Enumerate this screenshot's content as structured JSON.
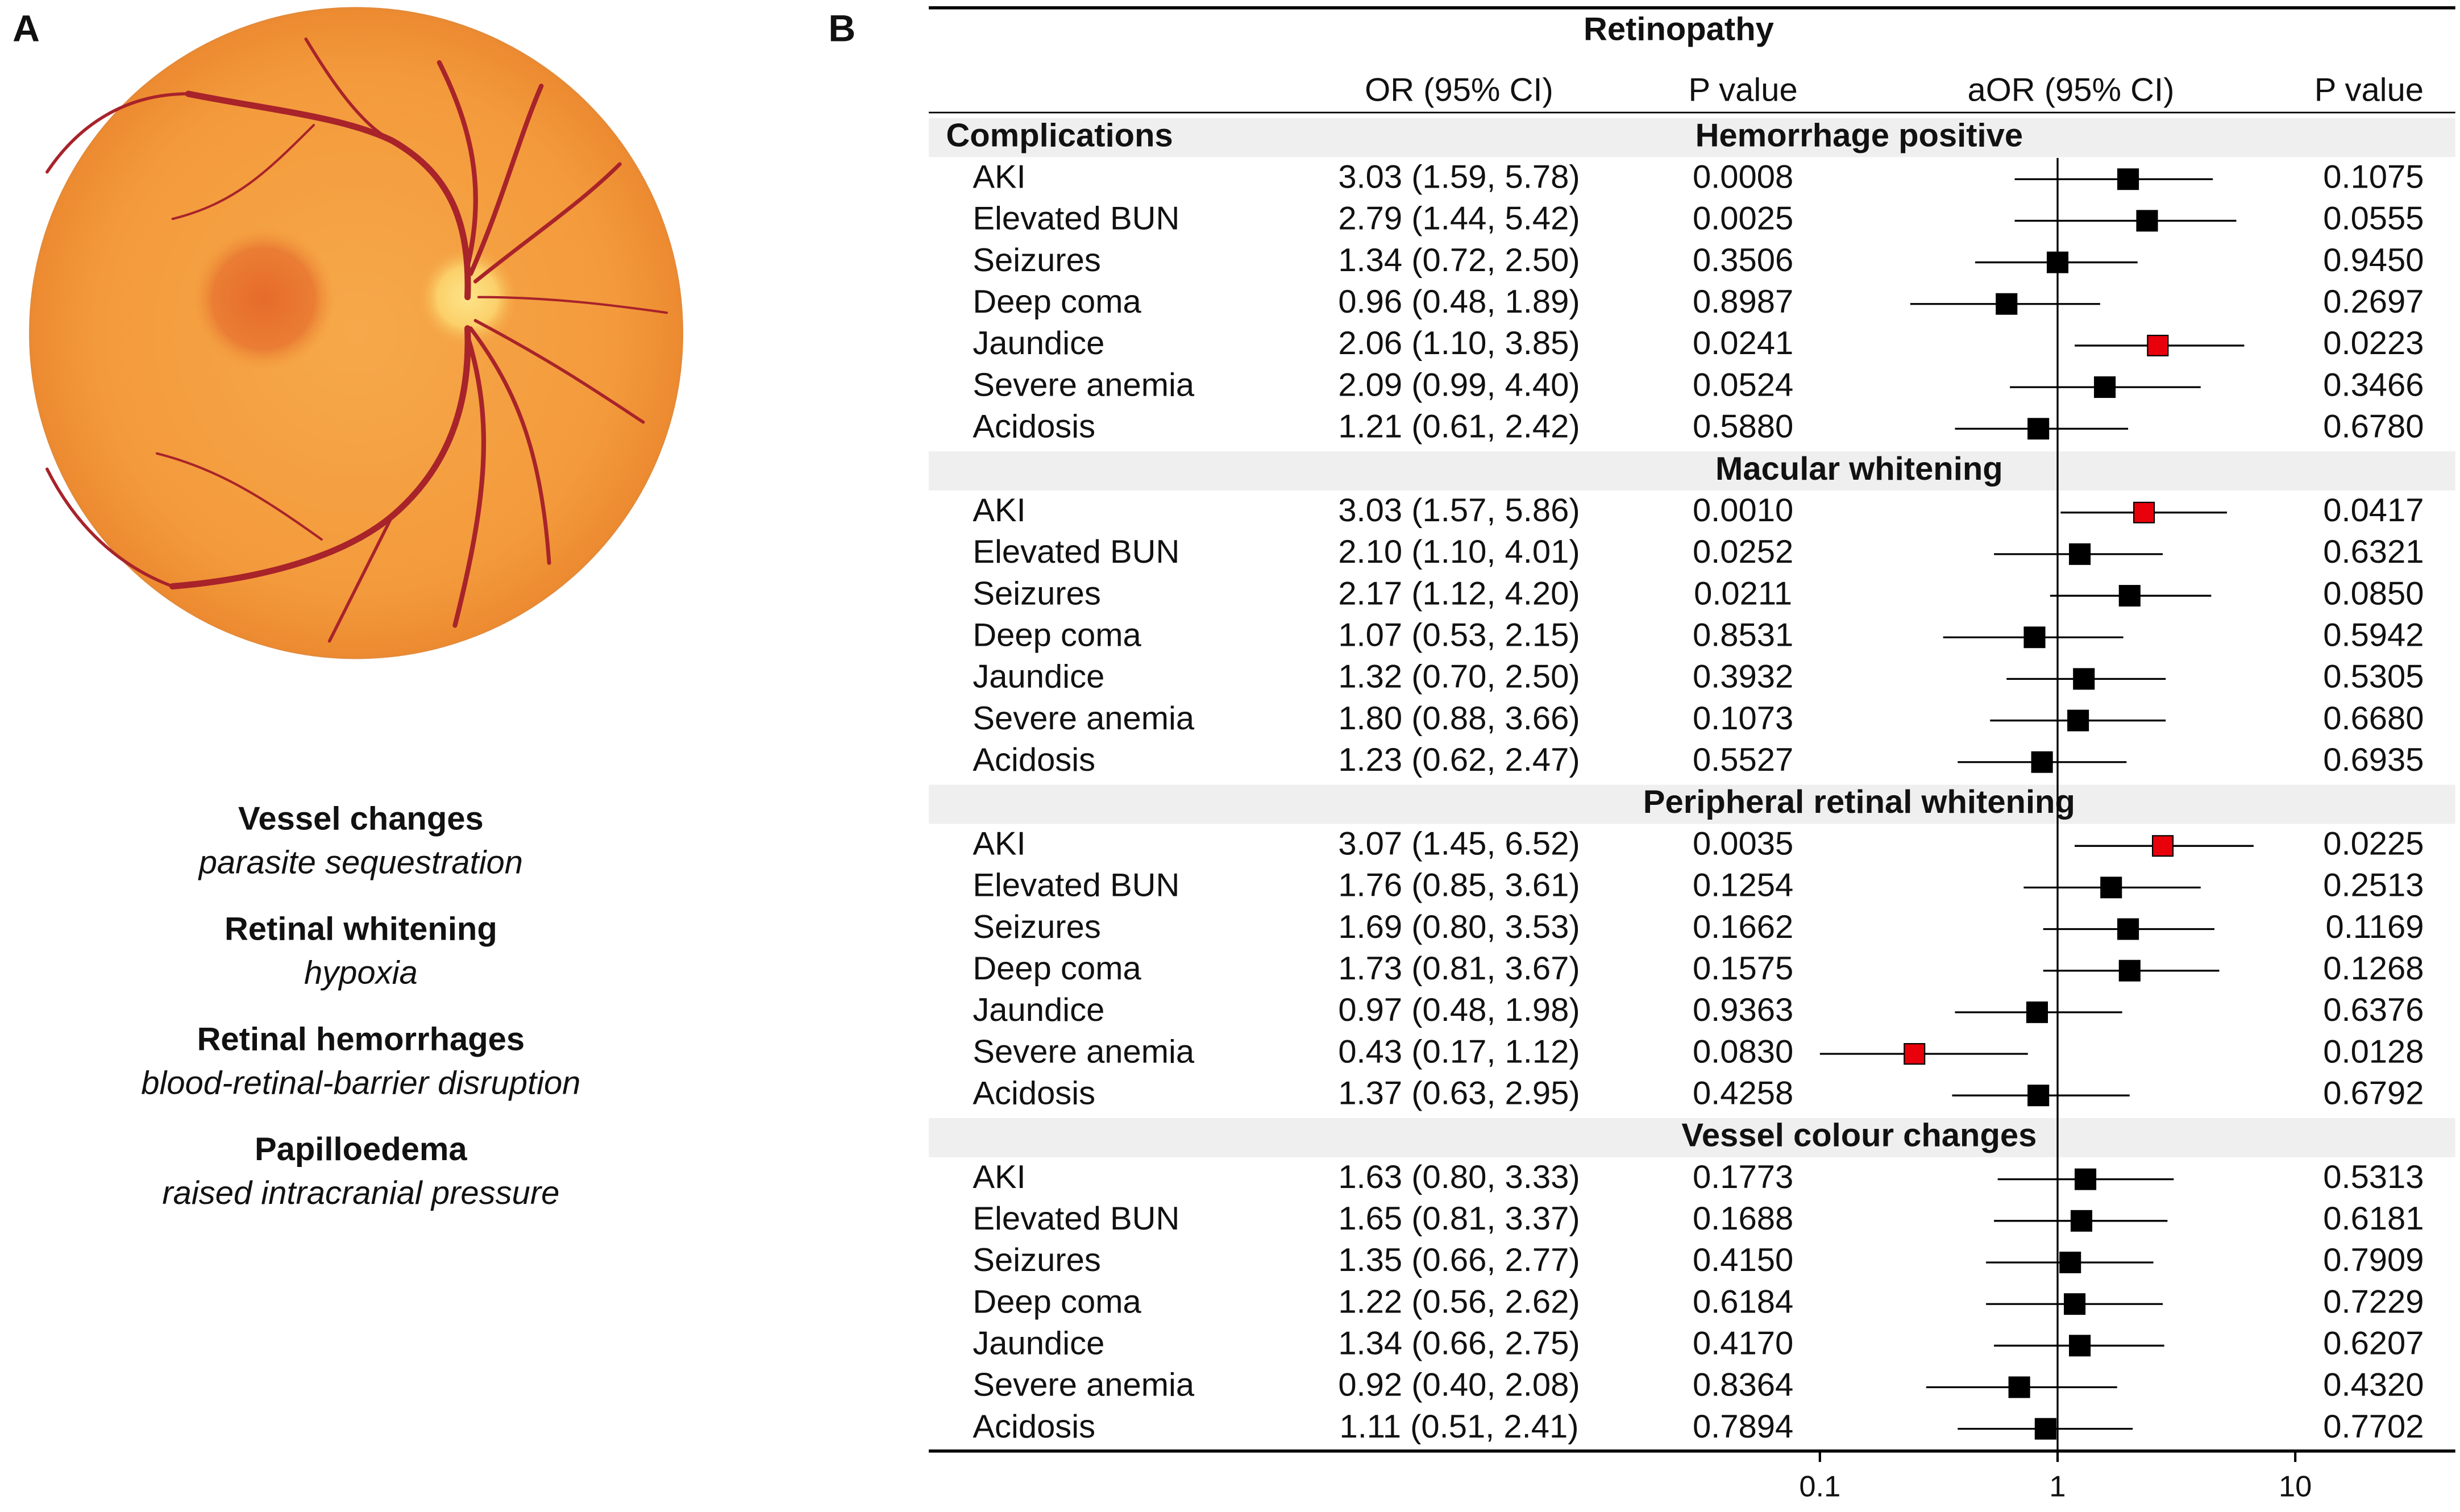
{
  "panel_a": {
    "label": "A",
    "items": [
      {
        "title": "Vessel changes",
        "subtitle": "parasite sequestration"
      },
      {
        "title": "Retinal whitening",
        "subtitle": "hypoxia"
      },
      {
        "title": "Retinal hemorrhages",
        "subtitle": "blood-retinal-barrier disruption"
      },
      {
        "title": "Papilloedema",
        "subtitle": "raised intracranial pressure"
      }
    ]
  },
  "chart_data": {
    "type": "forest",
    "panel_label": "B",
    "title": "Retinopathy",
    "columns": [
      "OR (95% CI)",
      "P value",
      "aOR (95% CI)",
      "P value"
    ],
    "row_header": "Complications",
    "xscale": "log",
    "xlim": [
      0.1,
      10
    ],
    "xticks": [
      0.1,
      1,
      10
    ],
    "reference_line": 1,
    "groups": [
      {
        "name": "Hemorrhage positive",
        "rows": [
          {
            "label": "AKI",
            "or_ci": "3.03 (1.59, 5.78)",
            "p": "0.0008",
            "aor": 1.98,
            "aor_low": 0.66,
            "aor_high": 4.5,
            "p_adj": "0.1075",
            "color": "#000000"
          },
          {
            "label": "Elevated BUN",
            "or_ci": "2.79 (1.44, 5.42)",
            "p": "0.0025",
            "aor": 2.38,
            "aor_low": 0.66,
            "aor_high": 5.65,
            "p_adj": "0.0555",
            "color": "#000000"
          },
          {
            "label": "Seizures",
            "or_ci": "1.34 (0.72, 2.50)",
            "p": "0.3506",
            "aor": 1.0,
            "aor_low": 0.45,
            "aor_high": 2.17,
            "p_adj": "0.9450",
            "color": "#000000"
          },
          {
            "label": "Deep coma",
            "or_ci": "0.96 (0.48, 1.89)",
            "p": "0.8987",
            "aor": 0.61,
            "aor_low": 0.24,
            "aor_high": 1.51,
            "p_adj": "0.2697",
            "color": "#000000"
          },
          {
            "label": "Jaundice",
            "or_ci": "2.06 (1.10, 3.85)",
            "p": "0.0241",
            "aor": 2.64,
            "aor_low": 1.18,
            "aor_high": 6.1,
            "p_adj": "0.0223",
            "color": "#e8000b"
          },
          {
            "label": "Severe anemia",
            "or_ci": "2.09 (0.99, 4.40)",
            "p": "0.0524",
            "aor": 1.58,
            "aor_low": 0.63,
            "aor_high": 4.0,
            "p_adj": "0.3466",
            "color": "#000000"
          },
          {
            "label": "Acidosis",
            "or_ci": "1.21 (0.61, 2.42)",
            "p": "0.5880",
            "aor": 0.83,
            "aor_low": 0.37,
            "aor_high": 1.98,
            "p_adj": "0.6780",
            "color": "#000000"
          }
        ]
      },
      {
        "name": "Macular whitening",
        "rows": [
          {
            "label": "AKI",
            "or_ci": "3.03 (1.57, 5.86)",
            "p": "0.0010",
            "aor": 2.31,
            "aor_low": 1.03,
            "aor_high": 5.16,
            "p_adj": "0.0417",
            "color": "#e8000b"
          },
          {
            "label": "Elevated BUN",
            "or_ci": "2.10 (1.10, 4.01)",
            "p": "0.0252",
            "aor": 1.24,
            "aor_low": 0.54,
            "aor_high": 2.77,
            "p_adj": "0.6321",
            "color": "#000000"
          },
          {
            "label": "Seizures",
            "or_ci": "2.17 (1.12, 4.20)",
            "p": "0.0211",
            "aor": 2.01,
            "aor_low": 0.93,
            "aor_high": 4.43,
            "p_adj": "0.0850",
            "color": "#000000"
          },
          {
            "label": "Deep coma",
            "or_ci": "1.07 (0.53, 2.15)",
            "p": "0.8531",
            "aor": 0.8,
            "aor_low": 0.33,
            "aor_high": 1.89,
            "p_adj": "0.5942",
            "color": "#000000"
          },
          {
            "label": "Jaundice",
            "or_ci": "1.32 (0.70, 2.50)",
            "p": "0.3932",
            "aor": 1.29,
            "aor_low": 0.61,
            "aor_high": 2.85,
            "p_adj": "0.5305",
            "color": "#000000"
          },
          {
            "label": "Severe anemia",
            "or_ci": "1.80 (0.88, 3.66)",
            "p": "0.1073",
            "aor": 1.22,
            "aor_low": 0.52,
            "aor_high": 2.85,
            "p_adj": "0.6680",
            "color": "#000000"
          },
          {
            "label": "Acidosis",
            "or_ci": "1.23 (0.62, 2.47)",
            "p": "0.5527",
            "aor": 0.86,
            "aor_low": 0.38,
            "aor_high": 1.95,
            "p_adj": "0.6935",
            "color": "#000000"
          }
        ]
      },
      {
        "name": "Peripheral retinal whitening",
        "rows": [
          {
            "label": "AKI",
            "or_ci": "3.07 (1.45, 6.52)",
            "p": "0.0035",
            "aor": 2.77,
            "aor_low": 1.18,
            "aor_high": 6.68,
            "p_adj": "0.0225",
            "color": "#e8000b"
          },
          {
            "label": "Elevated BUN",
            "or_ci": "1.76 (0.85, 3.61)",
            "p": "0.1254",
            "aor": 1.68,
            "aor_low": 0.72,
            "aor_high": 4.0,
            "p_adj": "0.2513",
            "color": "#000000"
          },
          {
            "label": "Seizures",
            "or_ci": "1.69 (0.80, 3.53)",
            "p": "0.1662",
            "aor": 1.98,
            "aor_low": 0.87,
            "aor_high": 4.57,
            "p_adj": "0.1169",
            "color": "#000000"
          },
          {
            "label": "Deep coma",
            "or_ci": "1.73 (0.81, 3.67)",
            "p": "0.1575",
            "aor": 2.01,
            "aor_low": 0.87,
            "aor_high": 4.79,
            "p_adj": "0.1268",
            "color": "#000000"
          },
          {
            "label": "Jaundice",
            "or_ci": "0.97 (0.48, 1.98)",
            "p": "0.9363",
            "aor": 0.82,
            "aor_low": 0.37,
            "aor_high": 1.87,
            "p_adj": "0.6376",
            "color": "#000000"
          },
          {
            "label": "Severe anemia",
            "or_ci": "0.43 (0.17, 1.12)",
            "p": "0.0830",
            "aor": 0.25,
            "aor_low": 0.1,
            "aor_high": 0.75,
            "p_adj": "0.0128",
            "color": "#e8000b"
          },
          {
            "label": "Acidosis",
            "or_ci": "1.37 (0.63, 2.95)",
            "p": "0.4258",
            "aor": 0.83,
            "aor_low": 0.36,
            "aor_high": 2.01,
            "p_adj": "0.6792",
            "color": "#000000"
          }
        ]
      },
      {
        "name": "Vessel colour changes",
        "rows": [
          {
            "label": "AKI",
            "or_ci": "1.63 (0.80, 3.33)",
            "p": "0.1773",
            "aor": 1.31,
            "aor_low": 0.56,
            "aor_high": 3.08,
            "p_adj": "0.5313",
            "color": "#000000"
          },
          {
            "label": "Elevated BUN",
            "or_ci": "1.65 (0.81, 3.37)",
            "p": "0.1688",
            "aor": 1.26,
            "aor_low": 0.54,
            "aor_high": 2.9,
            "p_adj": "0.6181",
            "color": "#000000"
          },
          {
            "label": "Seizures",
            "or_ci": "1.35 (0.66, 2.77)",
            "p": "0.4150",
            "aor": 1.13,
            "aor_low": 0.5,
            "aor_high": 2.53,
            "p_adj": "0.7909",
            "color": "#000000"
          },
          {
            "label": "Deep coma",
            "or_ci": "1.22 (0.56, 2.62)",
            "p": "0.6184",
            "aor": 1.18,
            "aor_low": 0.5,
            "aor_high": 2.77,
            "p_adj": "0.7229",
            "color": "#000000"
          },
          {
            "label": "Jaundice",
            "or_ci": "1.34 (0.66, 2.75)",
            "p": "0.4170",
            "aor": 1.24,
            "aor_low": 0.54,
            "aor_high": 2.81,
            "p_adj": "0.6207",
            "color": "#000000"
          },
          {
            "label": "Severe anemia",
            "or_ci": "0.92 (0.40, 2.08)",
            "p": "0.8364",
            "aor": 0.69,
            "aor_low": 0.28,
            "aor_high": 1.78,
            "p_adj": "0.4320",
            "color": "#000000"
          },
          {
            "label": "Acidosis",
            "or_ci": "1.11 (0.51, 2.41)",
            "p": "0.7894",
            "aor": 0.89,
            "aor_low": 0.38,
            "aor_high": 2.07,
            "p_adj": "0.7702",
            "color": "#000000"
          }
        ]
      }
    ]
  }
}
